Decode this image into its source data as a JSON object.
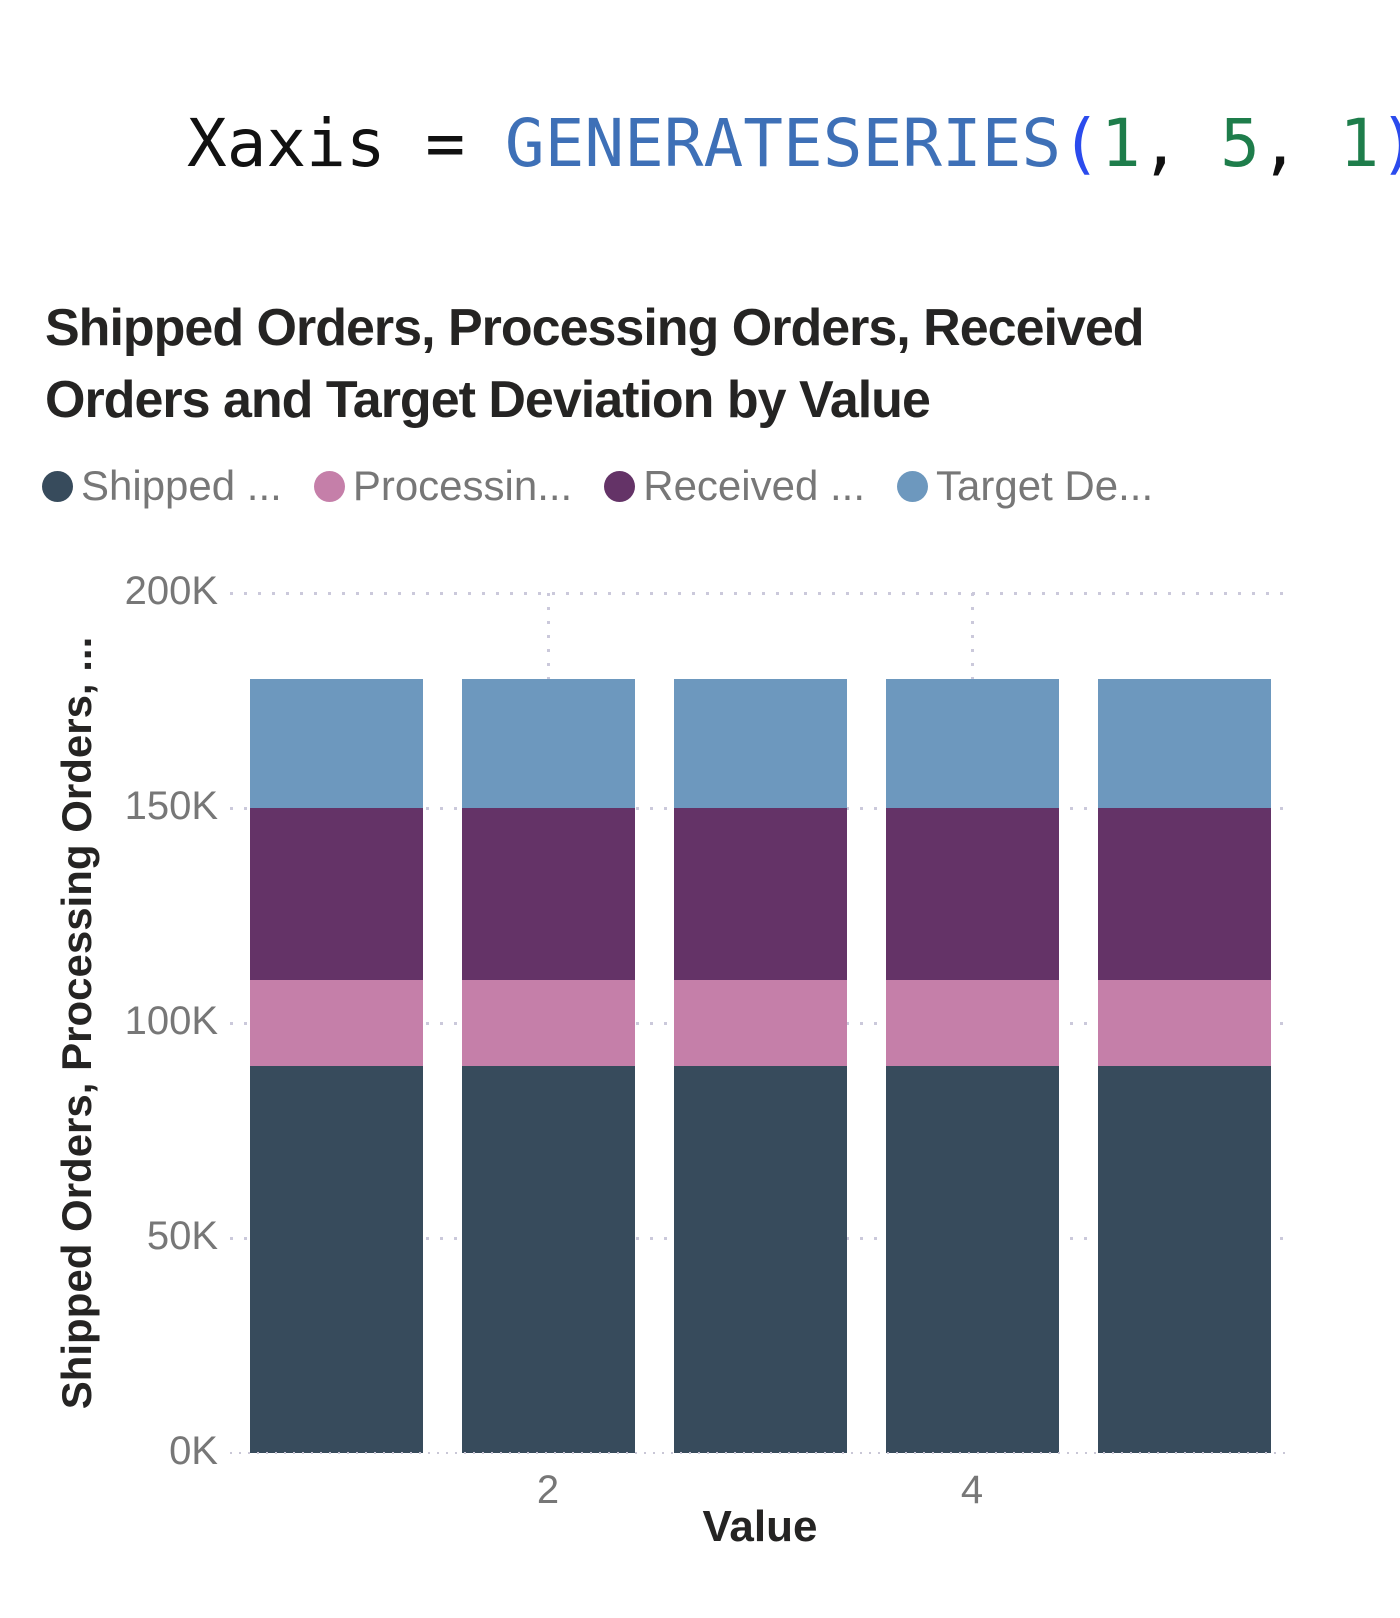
{
  "formula": {
    "variable": "Xaxis ",
    "equals": "= ",
    "function": "GENERATESERIES",
    "open_paren": "(",
    "arg1": "1",
    "comma1": ", ",
    "arg2": "5",
    "comma2": ", ",
    "arg3": "1",
    "close_paren": ")",
    "colors": {
      "function": "#3E70B7",
      "paren": "#2B4BED",
      "number": "#1E7D4B",
      "text": "#111111"
    }
  },
  "chart": {
    "title": "Shipped Orders, Processing Orders, Received\nOrders and Target Deviation by Value",
    "x_axis_title": "Value",
    "y_axis_title": "Shipped Orders, Processing Orders, ...",
    "legend": {
      "items": [
        {
          "label": "Shipped ...",
          "color": "#374B5C"
        },
        {
          "label": "Processin...",
          "color": "#C57FA9"
        },
        {
          "label": "Received ...",
          "color": "#643367"
        },
        {
          "label": "Target De...",
          "color": "#6D98BE"
        }
      ]
    }
  },
  "chart_data": {
    "type": "bar",
    "stacked": true,
    "title": "Shipped Orders, Processing Orders, Received Orders and Target Deviation by Value",
    "xlabel": "Value",
    "ylabel": "Shipped Orders, Processing Orders, ...",
    "categories": [
      1,
      2,
      3,
      4,
      5
    ],
    "x_tick_labels": [
      "",
      "2",
      "",
      "4",
      ""
    ],
    "series": [
      {
        "name": "Shipped Orders",
        "color": "#374B5C",
        "values": [
          90000,
          90000,
          90000,
          90000,
          90000
        ]
      },
      {
        "name": "Processing Orders",
        "color": "#C57FA9",
        "values": [
          20000,
          20000,
          20000,
          20000,
          20000
        ]
      },
      {
        "name": "Received Orders",
        "color": "#643367",
        "values": [
          40000,
          40000,
          40000,
          40000,
          40000
        ]
      },
      {
        "name": "Target Deviation",
        "color": "#6D98BE",
        "values": [
          30000,
          30000,
          30000,
          30000,
          30000
        ]
      }
    ],
    "ylim": [
      0,
      200000
    ],
    "y_ticks": [
      {
        "value": 0,
        "label": "0K"
      },
      {
        "value": 50000,
        "label": "50K"
      },
      {
        "value": 100000,
        "label": "100K"
      },
      {
        "value": 150000,
        "label": "150K"
      },
      {
        "value": 200000,
        "label": "200K"
      }
    ],
    "grid": "dotted",
    "legend_position": "top"
  }
}
